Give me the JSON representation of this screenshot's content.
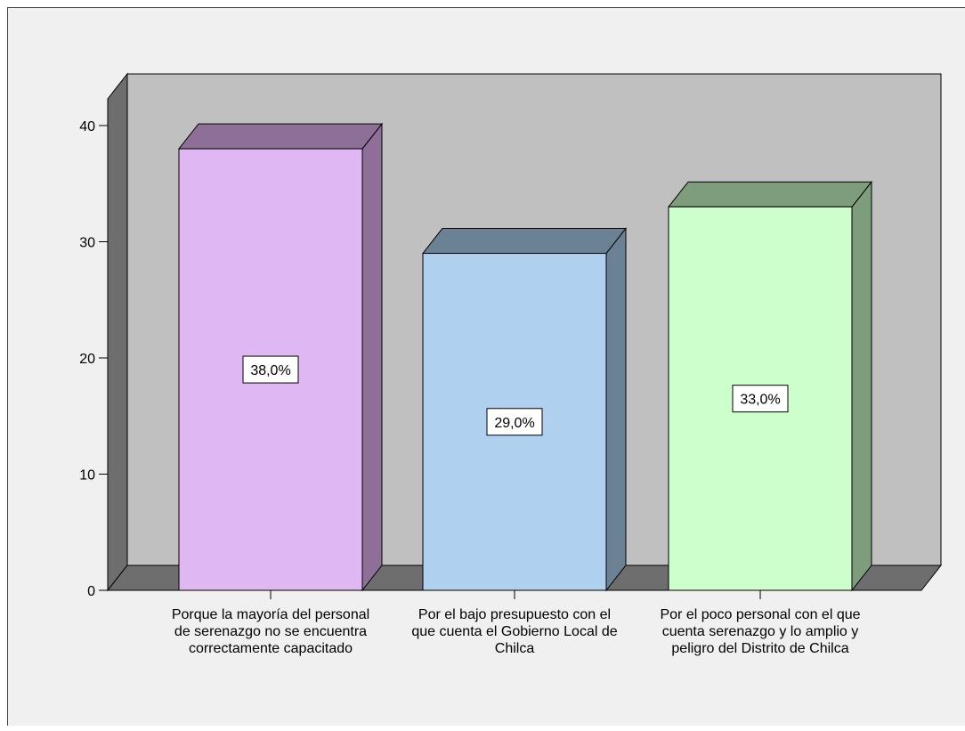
{
  "chart_data": {
    "type": "bar",
    "title": "",
    "xlabel": "",
    "ylabel": "",
    "ylim": [
      0,
      40
    ],
    "yticks": [
      0,
      10,
      20,
      30,
      40
    ],
    "categories": [
      [
        "Porque la mayoría del personal",
        "de serenazgo no se encuentra",
        "correctamente capacitado"
      ],
      [
        "Por el bajo presupuesto con el",
        "que cuenta el Gobierno Local de",
        "Chilca"
      ],
      [
        "Por el poco personal con el que",
        "cuenta serenazgo y lo amplio y",
        "peligro del Distrito de Chilca"
      ]
    ],
    "values": [
      38,
      29,
      33
    ],
    "data_labels": [
      "38,0%",
      "29,0%",
      "33,0%"
    ],
    "style": "3d",
    "grid": false,
    "legend": "none",
    "colors": {
      "frame_bg": "#f0f0f0",
      "plot_back": "#c0c0c0",
      "plot_side": "#6e6e6e",
      "bars": [
        {
          "front": "#dfb7f2",
          "top": "#8e6f98",
          "side": "#8e6f98"
        },
        {
          "front": "#afd1ef",
          "top": "#6b8294",
          "side": "#6b8294"
        },
        {
          "front": "#ccffcc",
          "top": "#7d9d7c",
          "side": "#7d9d7c"
        }
      ]
    }
  }
}
